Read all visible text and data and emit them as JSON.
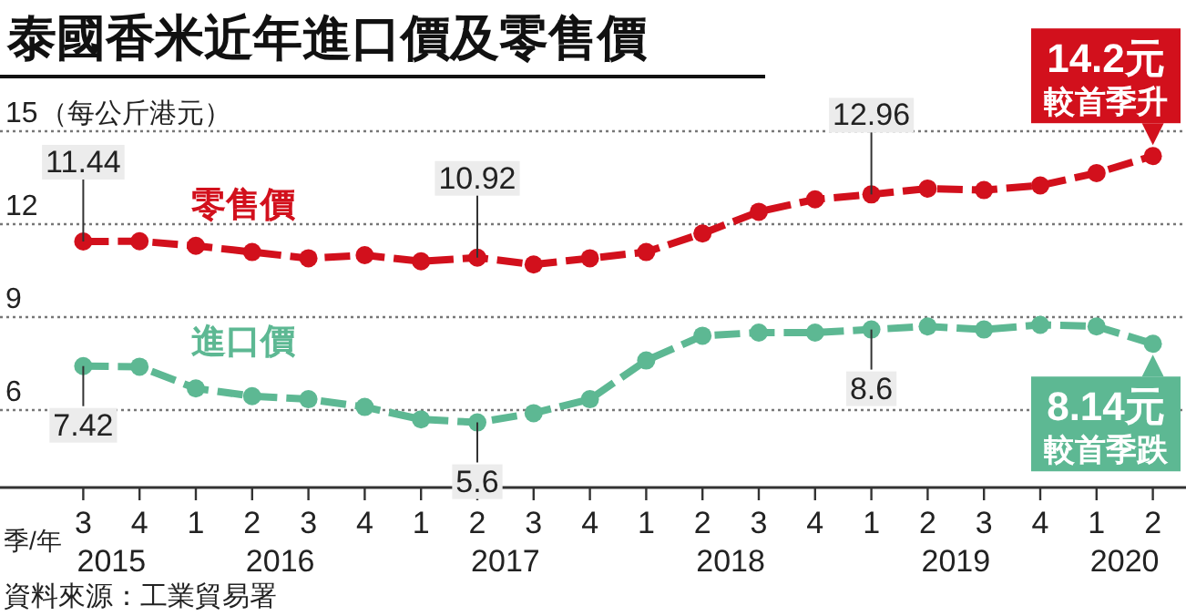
{
  "chart_data": {
    "type": "line",
    "title": "泰國香米近年進口價及零售價",
    "ylabel": "（每公斤港元）",
    "xlabel": "季/年",
    "categories": [
      "3",
      "4",
      "1",
      "2",
      "3",
      "4",
      "1",
      "2",
      "3",
      "4",
      "1",
      "2",
      "3",
      "4",
      "1",
      "2",
      "3",
      "4",
      "1",
      "2"
    ],
    "series": [
      {
        "name": "零售價",
        "color": "#d2101c",
        "values": [
          11.44,
          11.45,
          11.3,
          11.1,
          10.9,
          11.0,
          10.8,
          10.92,
          10.7,
          10.9,
          11.1,
          11.7,
          12.4,
          12.8,
          12.96,
          13.15,
          13.1,
          13.25,
          13.65,
          14.2
        ],
        "value_labels": [
          "11.44",
          null,
          null,
          null,
          null,
          null,
          null,
          "10.92",
          null,
          null,
          null,
          null,
          null,
          null,
          "12.96",
          null,
          null,
          null,
          null,
          null
        ]
      },
      {
        "name": "進口價",
        "color": "#5db893",
        "values": [
          7.42,
          7.4,
          6.7,
          6.45,
          6.35,
          6.1,
          5.7,
          5.6,
          5.9,
          6.35,
          7.6,
          8.4,
          8.5,
          8.5,
          8.6,
          8.7,
          8.6,
          8.75,
          8.7,
          8.14
        ],
        "value_labels": [
          "7.42",
          null,
          null,
          null,
          null,
          null,
          null,
          "5.6",
          null,
          null,
          null,
          null,
          null,
          null,
          "8.6",
          null,
          null,
          null,
          null,
          null
        ]
      }
    ],
    "ylim": [
      3.5,
      15
    ],
    "yticks": [
      6,
      9,
      12,
      15
    ],
    "grid": "y",
    "legend": false,
    "marker": "circle",
    "line_style": "dashed",
    "annotations": [
      "2015",
      "2016",
      "2017",
      "2018",
      "2019",
      "2020",
      "14.2元",
      "較首季升",
      "8.14元",
      "較首季跌",
      "資料來源：工業貿易署"
    ]
  }
}
